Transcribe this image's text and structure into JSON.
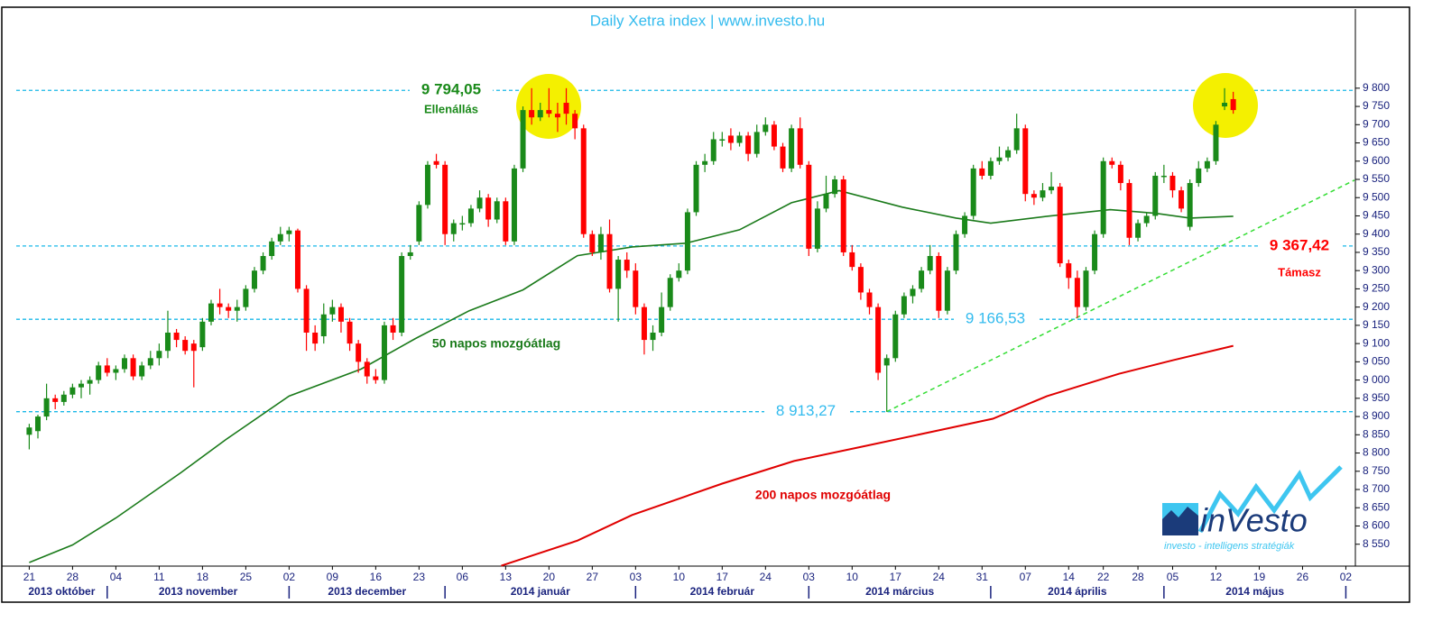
{
  "chart_data": {
    "type": "candlestick",
    "title": "Daily Xetra index | www.investo.hu",
    "xlim": [
      -1.5,
      153.1
    ],
    "ylim": [
      8490,
      10017
    ],
    "xticks": [
      {
        "value": 0,
        "label": "21"
      },
      {
        "value": 5,
        "label": "28"
      },
      {
        "value": 10,
        "label": "04"
      },
      {
        "value": 15,
        "label": "11"
      },
      {
        "value": 20,
        "label": "18"
      },
      {
        "value": 25,
        "label": "25"
      },
      {
        "value": 30,
        "label": "02"
      },
      {
        "value": 35,
        "label": "09"
      },
      {
        "value": 40,
        "label": "16"
      },
      {
        "value": 45,
        "label": "23"
      },
      {
        "value": 50,
        "label": "06"
      },
      {
        "value": 55,
        "label": "13"
      },
      {
        "value": 60,
        "label": "20"
      },
      {
        "value": 65,
        "label": "27"
      },
      {
        "value": 70,
        "label": "03"
      },
      {
        "value": 75,
        "label": "10"
      },
      {
        "value": 80,
        "label": "17"
      },
      {
        "value": 85,
        "label": "24"
      },
      {
        "value": 90,
        "label": "03"
      },
      {
        "value": 95,
        "label": "10"
      },
      {
        "value": 100,
        "label": "17"
      },
      {
        "value": 105,
        "label": "24"
      },
      {
        "value": 110,
        "label": "31"
      },
      {
        "value": 115,
        "label": "07"
      },
      {
        "value": 120,
        "label": "14"
      },
      {
        "value": 124,
        "label": "22"
      },
      {
        "value": 128,
        "label": "28"
      },
      {
        "value": 132,
        "label": "05"
      },
      {
        "value": 137,
        "label": "12"
      },
      {
        "value": 142,
        "label": "19"
      },
      {
        "value": 147,
        "label": "26"
      },
      {
        "value": 152,
        "label": "02"
      }
    ],
    "yticks": [
      {
        "value": 8550,
        "label": "8 550"
      },
      {
        "value": 8600,
        "label": "8 600"
      },
      {
        "value": 8650,
        "label": "8 650"
      },
      {
        "value": 8700,
        "label": "8 700"
      },
      {
        "value": 8750,
        "label": "8 750"
      },
      {
        "value": 8800,
        "label": "8 800"
      },
      {
        "value": 8850,
        "label": "8 850"
      },
      {
        "value": 8900,
        "label": "8 900"
      },
      {
        "value": 8950,
        "label": "8 950"
      },
      {
        "value": 9000,
        "label": "9 000"
      },
      {
        "value": 9050,
        "label": "9 050"
      },
      {
        "value": 9100,
        "label": "9 100"
      },
      {
        "value": 9150,
        "label": "9 150"
      },
      {
        "value": 9200,
        "label": "9 200"
      },
      {
        "value": 9250,
        "label": "9 250"
      },
      {
        "value": 9300,
        "label": "9 300"
      },
      {
        "value": 9350,
        "label": "9 350"
      },
      {
        "value": 9400,
        "label": "9 400"
      },
      {
        "value": 9450,
        "label": "9 450"
      },
      {
        "value": 9500,
        "label": "9 500"
      },
      {
        "value": 9550,
        "label": "9 550"
      },
      {
        "value": 9600,
        "label": "9 600"
      },
      {
        "value": 9650,
        "label": "9 650"
      },
      {
        "value": 9700,
        "label": "9 700"
      },
      {
        "value": 9750,
        "label": "9 750"
      },
      {
        "value": 9800,
        "label": "9 800"
      }
    ],
    "months": [
      "2013 október",
      "2013 november",
      "2013 december",
      "2014 január",
      "2014 február",
      "2014 március",
      "2014 április",
      "2014 május"
    ],
    "month_boundaries": [
      9,
      30,
      48,
      70,
      90,
      111,
      131,
      152
    ],
    "up_color": "#1a8a1a",
    "down_color": "#ff0000",
    "x": [
      0,
      1,
      2,
      3,
      4,
      5,
      6,
      7,
      8,
      9,
      10,
      11,
      12,
      13,
      14,
      15,
      16,
      17,
      18,
      19,
      20,
      21,
      22,
      23,
      24,
      25,
      26,
      27,
      28,
      29,
      30,
      31,
      32,
      33,
      34,
      35,
      36,
      37,
      38,
      39,
      40,
      41,
      42,
      43,
      44,
      45,
      46,
      47,
      48,
      49,
      50,
      51,
      52,
      53,
      54,
      55,
      56,
      57,
      58,
      59,
      60,
      61,
      62,
      63,
      64,
      65,
      66,
      67,
      68,
      69,
      70,
      71,
      72,
      73,
      74,
      75,
      76,
      77,
      78,
      79,
      80,
      81,
      82,
      83,
      84,
      85,
      86,
      87,
      88,
      89,
      90,
      91,
      92,
      93,
      94,
      95,
      96,
      97,
      98,
      99,
      100,
      101,
      102,
      103,
      104,
      105,
      106,
      107,
      108,
      109,
      110,
      111,
      112,
      113,
      114,
      115,
      116,
      117,
      118,
      119,
      120,
      121,
      122,
      123,
      124,
      125,
      126,
      127,
      128,
      129,
      130,
      131,
      132,
      133,
      134,
      135,
      136,
      137,
      138,
      139
    ],
    "ohlc": [
      [
        8850,
        8880,
        8810,
        8870
      ],
      [
        8860,
        8905,
        8840,
        8900
      ],
      [
        8900,
        8990,
        8890,
        8950
      ],
      [
        8950,
        8960,
        8920,
        8940
      ],
      [
        8940,
        8970,
        8930,
        8960
      ],
      [
        8960,
        8990,
        8950,
        8980
      ],
      [
        8980,
        9000,
        8950,
        8990
      ],
      [
        8990,
        9010,
        8960,
        9000
      ],
      [
        9000,
        9050,
        8990,
        9040
      ],
      [
        9040,
        9060,
        9010,
        9020
      ],
      [
        9020,
        9040,
        9000,
        9030
      ],
      [
        9030,
        9070,
        9020,
        9060
      ],
      [
        9060,
        9070,
        9000,
        9010
      ],
      [
        9010,
        9050,
        9000,
        9040
      ],
      [
        9040,
        9080,
        9030,
        9060
      ],
      [
        9060,
        9100,
        9040,
        9080
      ],
      [
        9080,
        9190,
        9060,
        9130
      ],
      [
        9130,
        9140,
        9090,
        9110
      ],
      [
        9110,
        9120,
        9070,
        9080
      ],
      [
        9100,
        9110,
        8980,
        9080
      ],
      [
        9090,
        9170,
        9080,
        9160
      ],
      [
        9160,
        9220,
        9150,
        9210
      ],
      [
        9210,
        9250,
        9180,
        9200
      ],
      [
        9200,
        9210,
        9170,
        9190
      ],
      [
        9190,
        9220,
        9160,
        9200
      ],
      [
        9200,
        9260,
        9190,
        9250
      ],
      [
        9250,
        9310,
        9240,
        9300
      ],
      [
        9300,
        9350,
        9290,
        9340
      ],
      [
        9340,
        9390,
        9330,
        9380
      ],
      [
        9380,
        9420,
        9370,
        9400
      ],
      [
        9400,
        9420,
        9380,
        9410
      ],
      [
        9410,
        9415,
        9240,
        9250
      ],
      [
        9250,
        9260,
        9080,
        9130
      ],
      [
        9130,
        9150,
        9080,
        9100
      ],
      [
        9120,
        9210,
        9100,
        9180
      ],
      [
        9180,
        9220,
        9160,
        9200
      ],
      [
        9200,
        9210,
        9130,
        9160
      ],
      [
        9160,
        9170,
        9080,
        9100
      ],
      [
        9100,
        9110,
        9020,
        9050
      ],
      [
        9050,
        9060,
        8990,
        9010
      ],
      [
        9010,
        9030,
        8990,
        9000
      ],
      [
        9000,
        9160,
        8990,
        9150
      ],
      [
        9150,
        9170,
        9110,
        9130
      ],
      [
        9130,
        9350,
        9120,
        9340
      ],
      [
        9340,
        9370,
        9330,
        9350
      ],
      [
        9380,
        9490,
        9370,
        9480
      ],
      [
        9480,
        9600,
        9470,
        9590
      ],
      [
        9600,
        9620,
        9580,
        9590
      ],
      [
        9590,
        9600,
        9370,
        9400
      ],
      [
        9400,
        9440,
        9380,
        9430
      ],
      [
        9430,
        9450,
        9410,
        9430
      ],
      [
        9430,
        9480,
        9420,
        9470
      ],
      [
        9470,
        9520,
        9460,
        9500
      ],
      [
        9500,
        9510,
        9420,
        9440
      ],
      [
        9440,
        9500,
        9430,
        9490
      ],
      [
        9490,
        9500,
        9370,
        9380
      ],
      [
        9380,
        9590,
        9370,
        9580
      ],
      [
        9580,
        9750,
        9570,
        9740
      ],
      [
        9740,
        9800,
        9700,
        9720
      ],
      [
        9720,
        9760,
        9710,
        9740
      ],
      [
        9740,
        9800,
        9720,
        9730
      ],
      [
        9730,
        9760,
        9680,
        9720
      ],
      [
        9760,
        9800,
        9700,
        9730
      ],
      [
        9730,
        9740,
        9660,
        9690
      ],
      [
        9690,
        9700,
        9390,
        9400
      ],
      [
        9400,
        9410,
        9340,
        9350
      ],
      [
        9350,
        9420,
        9330,
        9400
      ],
      [
        9400,
        9440,
        9240,
        9250
      ],
      [
        9250,
        9340,
        9160,
        9330
      ],
      [
        9330,
        9350,
        9280,
        9300
      ],
      [
        9300,
        9320,
        9180,
        9200
      ],
      [
        9200,
        9210,
        9070,
        9110
      ],
      [
        9110,
        9150,
        9080,
        9130
      ],
      [
        9130,
        9240,
        9120,
        9200
      ],
      [
        9200,
        9290,
        9190,
        9280
      ],
      [
        9280,
        9320,
        9270,
        9300
      ],
      [
        9300,
        9470,
        9290,
        9460
      ],
      [
        9460,
        9600,
        9450,
        9590
      ],
      [
        9590,
        9620,
        9570,
        9600
      ],
      [
        9600,
        9680,
        9590,
        9660
      ],
      [
        9660,
        9680,
        9640,
        9660
      ],
      [
        9670,
        9690,
        9630,
        9650
      ],
      [
        9650,
        9680,
        9640,
        9670
      ],
      [
        9670,
        9680,
        9600,
        9620
      ],
      [
        9620,
        9700,
        9610,
        9680
      ],
      [
        9680,
        9720,
        9670,
        9700
      ],
      [
        9700,
        9710,
        9630,
        9640
      ],
      [
        9640,
        9650,
        9570,
        9580
      ],
      [
        9580,
        9700,
        9570,
        9690
      ],
      [
        9690,
        9720,
        9580,
        9590
      ],
      [
        9590,
        9600,
        9340,
        9360
      ],
      [
        9360,
        9490,
        9350,
        9470
      ],
      [
        9470,
        9560,
        9460,
        9510
      ],
      [
        9510,
        9560,
        9500,
        9550
      ],
      [
        9550,
        9560,
        9340,
        9350
      ],
      [
        9350,
        9370,
        9300,
        9310
      ],
      [
        9310,
        9320,
        9220,
        9240
      ],
      [
        9240,
        9250,
        9180,
        9200
      ],
      [
        9200,
        9210,
        9000,
        9020
      ],
      [
        9040,
        9070,
        8913,
        9060
      ],
      [
        9060,
        9190,
        9050,
        9180
      ],
      [
        9180,
        9240,
        9170,
        9230
      ],
      [
        9230,
        9260,
        9210,
        9250
      ],
      [
        9250,
        9310,
        9240,
        9300
      ],
      [
        9300,
        9370,
        9290,
        9340
      ],
      [
        9340,
        9350,
        9170,
        9190
      ],
      [
        9190,
        9310,
        9180,
        9300
      ],
      [
        9300,
        9410,
        9290,
        9400
      ],
      [
        9400,
        9460,
        9390,
        9450
      ],
      [
        9450,
        9590,
        9440,
        9580
      ],
      [
        9580,
        9600,
        9550,
        9560
      ],
      [
        9560,
        9610,
        9550,
        9600
      ],
      [
        9600,
        9640,
        9590,
        9610
      ],
      [
        9610,
        9640,
        9600,
        9630
      ],
      [
        9630,
        9730,
        9620,
        9690
      ],
      [
        9690,
        9700,
        9490,
        9510
      ],
      [
        9510,
        9520,
        9480,
        9500
      ],
      [
        9500,
        9540,
        9490,
        9520
      ],
      [
        9520,
        9570,
        9510,
        9530
      ],
      [
        9530,
        9540,
        9310,
        9320
      ],
      [
        9320,
        9330,
        9250,
        9280
      ],
      [
        9280,
        9300,
        9170,
        9200
      ],
      [
        9200,
        9310,
        9190,
        9300
      ],
      [
        9300,
        9410,
        9290,
        9400
      ],
      [
        9400,
        9610,
        9390,
        9600
      ],
      [
        9600,
        9610,
        9580,
        9590
      ],
      [
        9590,
        9600,
        9520,
        9540
      ],
      [
        9540,
        9550,
        9370,
        9390
      ],
      [
        9390,
        9440,
        9380,
        9430
      ],
      [
        9430,
        9460,
        9420,
        9450
      ],
      [
        9450,
        9570,
        9440,
        9560
      ],
      [
        9560,
        9590,
        9540,
        9560
      ],
      [
        9560,
        9570,
        9500,
        9520
      ],
      [
        9520,
        9530,
        9460,
        9470
      ],
      [
        9420,
        9550,
        9410,
        9540
      ],
      [
        9540,
        9600,
        9530,
        9580
      ],
      [
        9580,
        9610,
        9570,
        9600
      ],
      [
        9600,
        9710,
        9590,
        9700
      ],
      [
        9750,
        9800,
        9740,
        9760
      ],
      [
        9770,
        9790,
        9730,
        9740
      ]
    ],
    "series": [
      {
        "name": "50 napos mozgóátlag",
        "color": "#1a7a1a",
        "x": [
          0,
          5,
          10,
          17.5,
          22.7,
          30,
          38.3,
          44.6,
          50.8,
          57,
          63.3,
          69.6,
          75.8,
          82,
          88,
          93.5,
          100.8,
          107,
          111,
          117.5,
          124.8,
          130,
          134,
          139
        ],
        "values": [
          8500,
          8548,
          8622,
          8746,
          8837,
          8956,
          9030,
          9114,
          9190,
          9247,
          9341,
          9365,
          9375,
          9412,
          9486,
          9519,
          9474,
          9444,
          9430,
          9449,
          9467,
          9457,
          9444,
          9449
        ]
      },
      {
        "name": "200 napos mozgóátlag",
        "color": "#e00000",
        "x": [
          54.5,
          63.3,
          69.6,
          80,
          88.3,
          96.7,
          105,
          111.25,
          117.5,
          125.8,
          132,
          139
        ],
        "values": [
          8491,
          8560,
          8630,
          8716,
          8778,
          8820,
          8862,
          8894,
          8956,
          9017,
          9054,
          9094
        ]
      }
    ],
    "trendline": {
      "x": [
        99,
        153
      ],
      "values": [
        8913.27,
        9548
      ],
      "color": "#33dd33"
    },
    "levels": [
      {
        "value": 9794.05,
        "label": "9 794,05",
        "caption": "Ellenállás",
        "color": "#1a8a1a"
      },
      {
        "value": 9367.42,
        "label": "9 367,42",
        "caption": "Támasz",
        "color": "#ff0000"
      },
      {
        "value": 9166.53,
        "label": "9 166,53",
        "color": "#33bbee"
      },
      {
        "value": 8913.27,
        "label": "8 913,27",
        "color": "#33bbee"
      }
    ],
    "level_line_color": "#1ab8e8",
    "logo": {
      "name": "inVesto",
      "tagline": "investo - intelligens stratégiák"
    }
  }
}
